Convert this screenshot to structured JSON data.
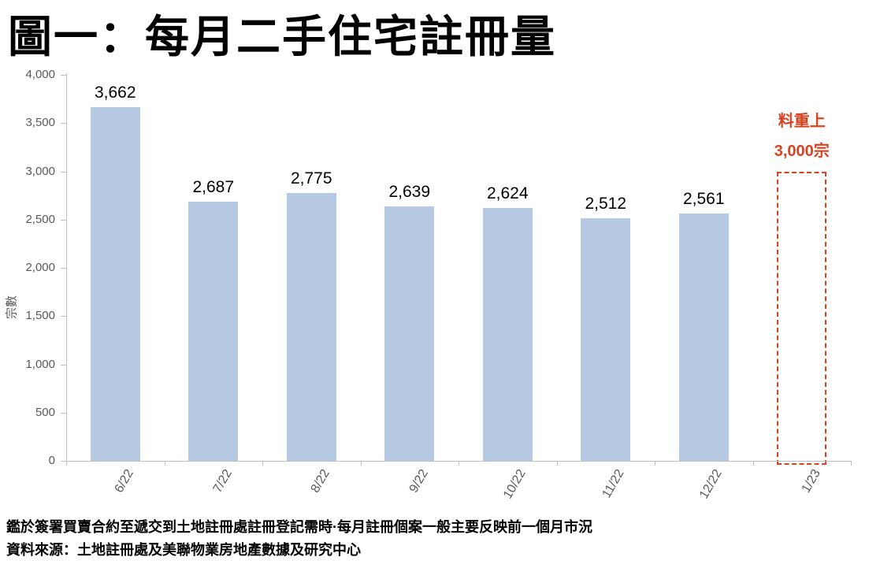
{
  "title": "圖一：每月二手住宅註冊量",
  "footer": {
    "note": "鑑於簽署買賣合約至遞交到土地註冊處註冊登記需時·每月註冊個案一般主要反映前一個月市況",
    "source": "資料來源：土地註冊處及美聯物業房地產數據及研究中心"
  },
  "chart_data": {
    "type": "bar",
    "title": "圖一：每月二手住宅註冊量",
    "ylabel": "宗數",
    "xlabel": "",
    "ylim": [
      0,
      4000
    ],
    "ytick_interval": 500,
    "ytick_labels": [
      "4,000",
      "3,500",
      "3,000",
      "2,500",
      "2,000",
      "1,500",
      "1,000",
      "500",
      "0"
    ],
    "categories": [
      "6/22",
      "7/22",
      "8/22",
      "9/22",
      "10/22",
      "11/22",
      "12/22"
    ],
    "values": [
      3662,
      2687,
      2775,
      2639,
      2624,
      2512,
      2561
    ],
    "value_labels": [
      "3,662",
      "2,687",
      "2,775",
      "2,639",
      "2,624",
      "2,512",
      "2,561"
    ],
    "forecast": {
      "category": "1/23",
      "value": 3000,
      "annotation_line1": "料重上",
      "annotation_line2": "3,000宗"
    },
    "grid": false,
    "legend": false,
    "colors": {
      "bar": "#b6c9e2",
      "axis": "#bfbfbf",
      "tick_label": "#595959",
      "value_label": "#000000",
      "forecast": "#d8431f"
    }
  }
}
